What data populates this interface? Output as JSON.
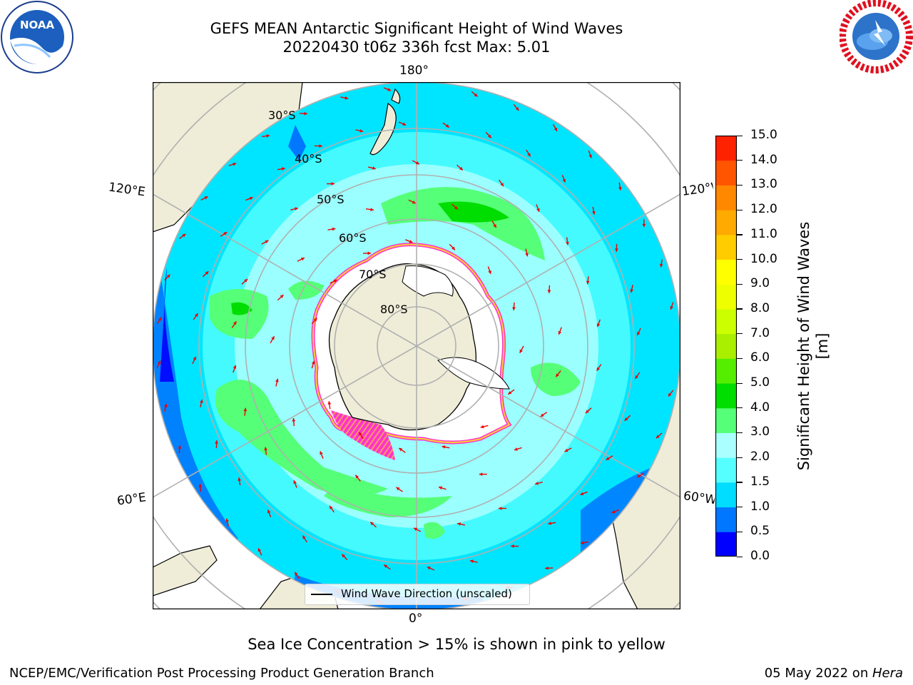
{
  "header": {
    "title_line1": "GEFS MEAN Antarctic Significant Height of Wind Waves",
    "title_line2": "20220430 t06z 336h fcst   Max: 5.01"
  },
  "logos": {
    "left": {
      "text": "NOAA",
      "ring_text": "NATIONAL OCEANIC AND ATMOSPHERIC ADMINISTRATION · U.S. DEPARTMENT OF COMMERCE"
    },
    "right": {
      "ring_text": "NATIONAL WEATHER SERVICE"
    }
  },
  "map": {
    "longitude_labels": {
      "top": "180°",
      "bottom": "0°",
      "upper_left": "120°E",
      "upper_right": "120°W",
      "lower_left": "60°E",
      "lower_right": "60°W"
    },
    "latitude_labels": [
      "30°S",
      "40°S",
      "50°S",
      "60°S",
      "70°S",
      "80°S"
    ],
    "legend_label": "Wind Wave Direction (unscaled)",
    "colors": {
      "land": "#efedd8",
      "ice_shelf": "#ffffff",
      "sea_ice": "#ff33cc",
      "grid": "#b0b0b0",
      "arrow": "#ee0000"
    }
  },
  "colorbar": {
    "label": "Significant Height of Wind Waves [m]",
    "ticks": [
      "0.0",
      "0.5",
      "1.0",
      "1.5",
      "2.0",
      "3.0",
      "4.0",
      "5.0",
      "6.0",
      "7.0",
      "8.0",
      "9.0",
      "10.0",
      "11.0",
      "12.0",
      "13.0",
      "14.0",
      "15.0"
    ],
    "colors": [
      "#0000ff",
      "#0077ff",
      "#00ddff",
      "#55ffff",
      "#aaffff",
      "#55ff77",
      "#00dd00",
      "#55ee00",
      "#aaee00",
      "#ccff00",
      "#eeff00",
      "#ffff00",
      "#ffcc00",
      "#ffaa00",
      "#ff8800",
      "#ff5500",
      "#ff2200"
    ]
  },
  "subnote": "Sea Ice Concentration > 15% is shown in pink to yellow",
  "footer": {
    "left": "NCEP/EMC/Verification Post Processing Product Generation Branch",
    "right_date": "05 May 2022 on ",
    "right_host": "Hera"
  }
}
